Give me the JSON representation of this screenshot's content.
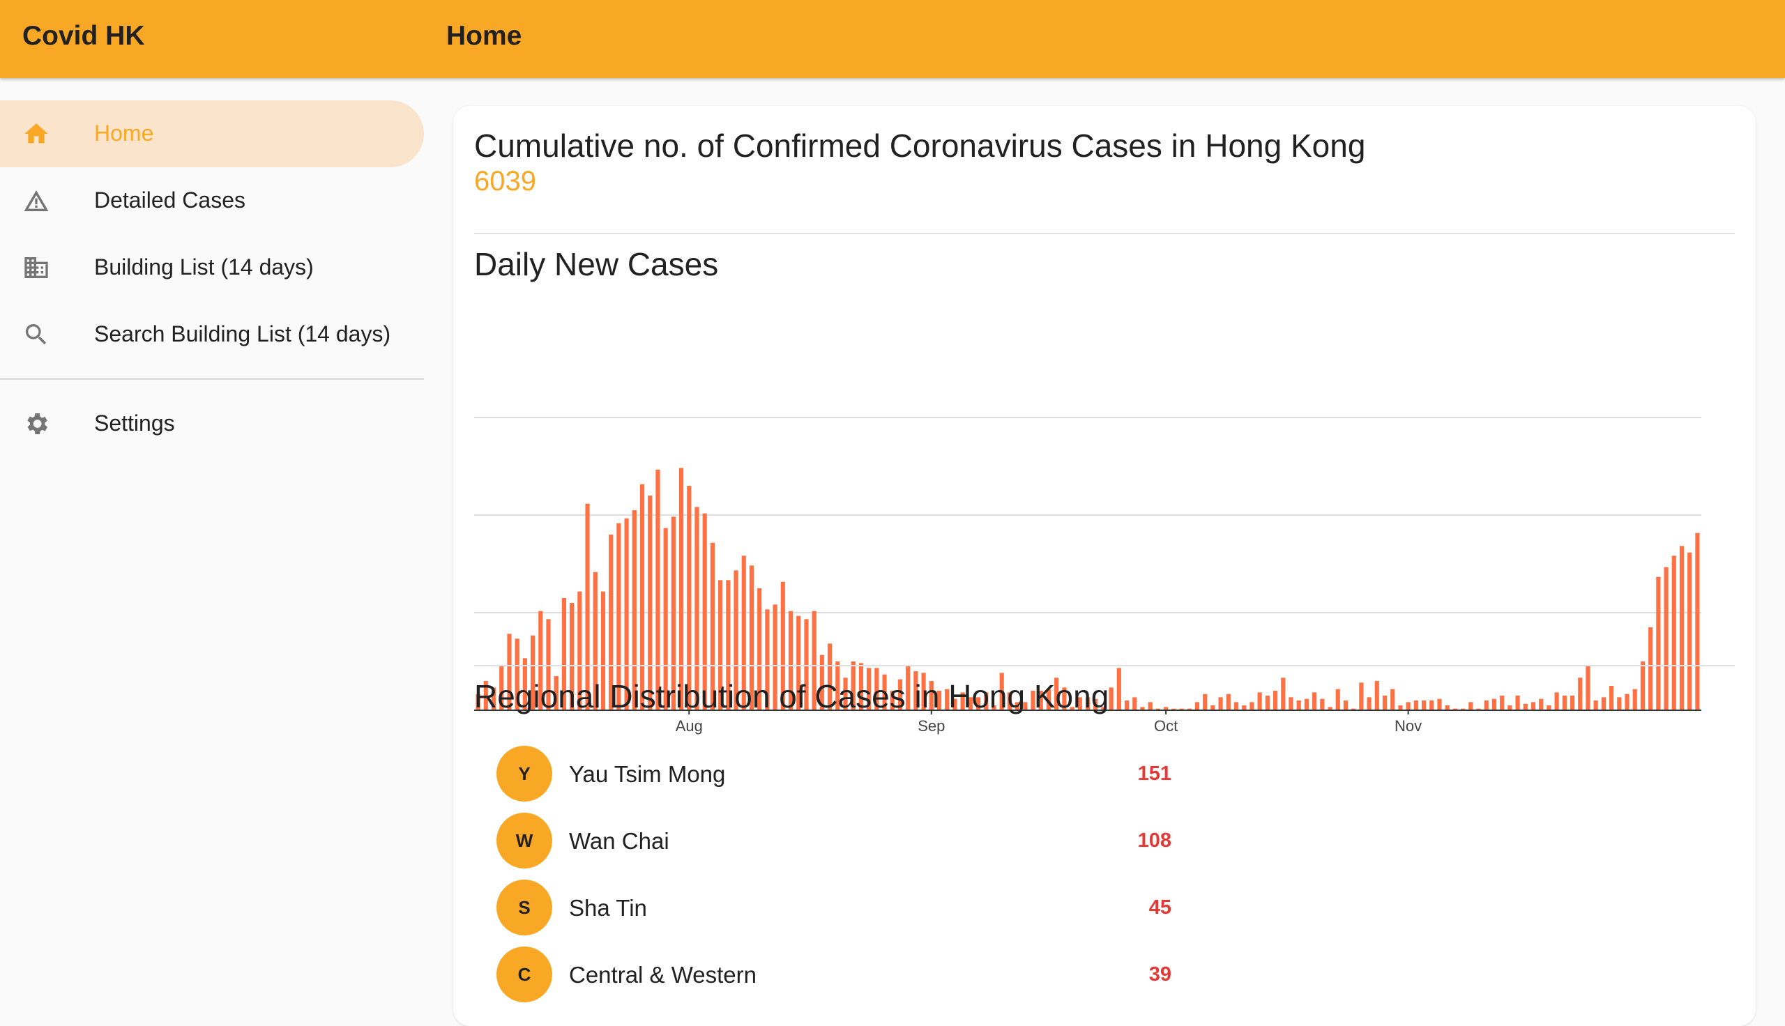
{
  "app": {
    "title": "Covid HK",
    "page_title": "Home"
  },
  "nav": {
    "items": [
      {
        "label": "Home",
        "icon": "home-icon",
        "active": true
      },
      {
        "label": "Detailed Cases",
        "icon": "warning-icon",
        "active": false
      },
      {
        "label": "Building List (14 days)",
        "icon": "building-icon",
        "active": false
      },
      {
        "label": "Search Building List (14 days)",
        "icon": "search-icon",
        "active": false
      }
    ],
    "settings": {
      "label": "Settings",
      "icon": "gear-icon"
    }
  },
  "summary": {
    "heading": "Cumulative no. of Confirmed Coronavirus Cases in Hong Kong",
    "total": "6039"
  },
  "daily": {
    "heading": "Daily New Cases"
  },
  "regional": {
    "heading": "Regional Distribution of Cases in Hong Kong",
    "rows": [
      {
        "initial": "Y",
        "name": "Yau Tsim Mong",
        "count": "151"
      },
      {
        "initial": "W",
        "name": "Wan Chai",
        "count": "108"
      },
      {
        "initial": "S",
        "name": "Sha Tin",
        "count": "45"
      },
      {
        "initial": "C",
        "name": "Central & Western",
        "count": "39"
      }
    ]
  },
  "colors": {
    "accent": "#f9a825",
    "active_bg": "#fbe4cc",
    "bar": "#ff7043",
    "count_red": "#e53935"
  },
  "chart_data": {
    "type": "bar",
    "title": "Daily New Cases",
    "xlabel": "",
    "ylabel": "",
    "x_ticks": [
      {
        "label": "Aug",
        "index": 27
      },
      {
        "label": "Sep",
        "index": 58
      },
      {
        "label": "Oct",
        "index": 88
      },
      {
        "label": "Nov",
        "index": 119
      }
    ],
    "ylim": [
      0,
      180
    ],
    "grid": true,
    "values": [
      10,
      18,
      14,
      27,
      47,
      44,
      32,
      46,
      61,
      56,
      21,
      69,
      66,
      73,
      127,
      85,
      73,
      108,
      115,
      118,
      123,
      139,
      132,
      148,
      112,
      119,
      149,
      138,
      125,
      121,
      103,
      80,
      80,
      86,
      95,
      89,
      75,
      62,
      65,
      79,
      61,
      58,
      56,
      61,
      34,
      41,
      30,
      20,
      30,
      29,
      26,
      26,
      22,
      12,
      19,
      27,
      24,
      23,
      18,
      12,
      13,
      7,
      11,
      8,
      8,
      11,
      3,
      23,
      11,
      5,
      5,
      12,
      12,
      13,
      20,
      14,
      2,
      8,
      8,
      7,
      2,
      14,
      26,
      6,
      8,
      2,
      5,
      1,
      2,
      1,
      1,
      1,
      5,
      10,
      3,
      8,
      10,
      5,
      3,
      5,
      11,
      9,
      12,
      20,
      8,
      6,
      7,
      11,
      7,
      2,
      13,
      6,
      1,
      17,
      8,
      18,
      9,
      13,
      3,
      5,
      6,
      6,
      6,
      7,
      3,
      1,
      1,
      5,
      1,
      6,
      7,
      9,
      3,
      9,
      4,
      5,
      7,
      3,
      11,
      9,
      9,
      20,
      27,
      6,
      8,
      15,
      8,
      10,
      13,
      30,
      51,
      82,
      88,
      95,
      101,
      97,
      109
    ]
  }
}
